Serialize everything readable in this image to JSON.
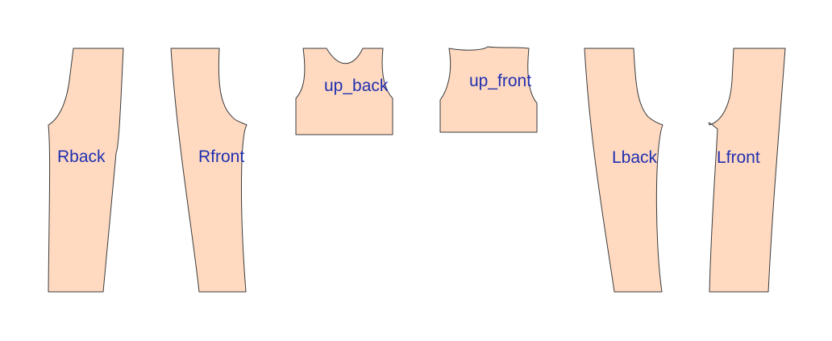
{
  "colors": {
    "piece_fill": "#FFDAC1",
    "piece_stroke": "#3A3A3A",
    "label": "#1F2FB0",
    "background": "#FFFFFF"
  },
  "pieces": [
    {
      "id": "rback",
      "label": "Rback"
    },
    {
      "id": "rfront",
      "label": "Rfront"
    },
    {
      "id": "up_back",
      "label": "up_back"
    },
    {
      "id": "up_front",
      "label": "up_front"
    },
    {
      "id": "lback",
      "label": "Lback"
    },
    {
      "id": "lfront",
      "label": "Lfront"
    }
  ]
}
